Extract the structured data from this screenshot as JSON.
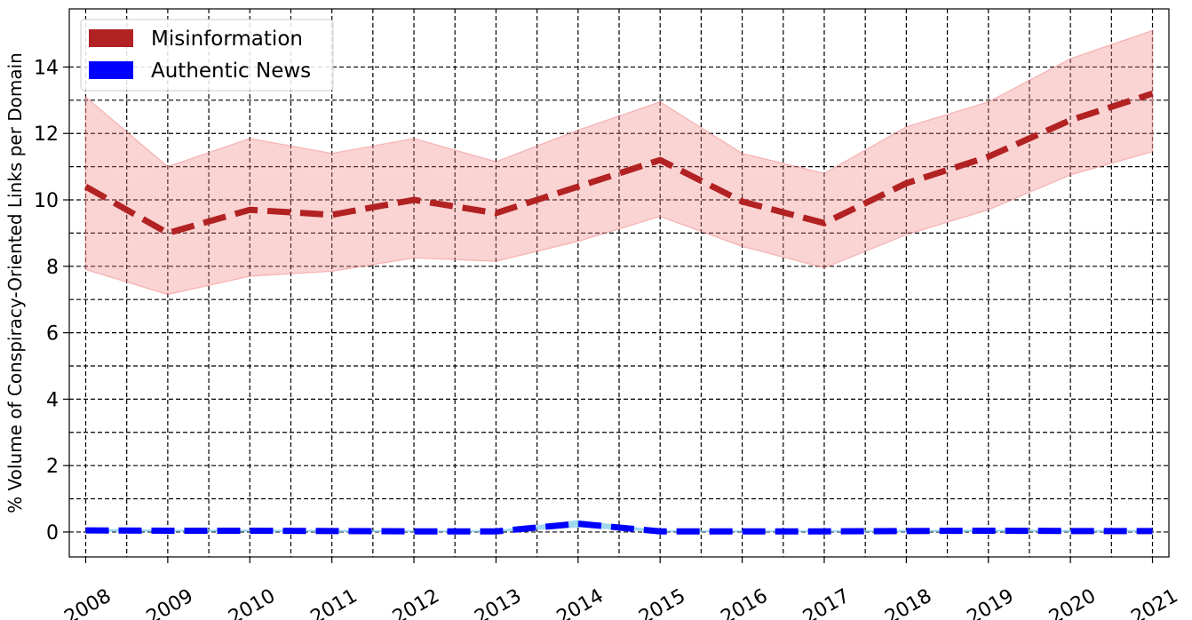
{
  "chart_data": {
    "type": "line",
    "title": "",
    "xlabel": "",
    "ylabel": "% Volume of Conspiracy-Oriented Links per Domain",
    "x": [
      2008,
      2009,
      2010,
      2011,
      2012,
      2013,
      2014,
      2015,
      2016,
      2017,
      2018,
      2019,
      2020,
      2021
    ],
    "x_tick_labels": [
      "2008",
      "2009",
      "2010",
      "2011",
      "2012",
      "2013",
      "2014",
      "2015",
      "2016",
      "2017",
      "2018",
      "2019",
      "2020",
      "2021"
    ],
    "y_ticks": [
      0,
      2,
      4,
      6,
      8,
      10,
      12,
      14
    ],
    "y_tick_labels": [
      "0",
      "2",
      "4",
      "6",
      "8",
      "10",
      "12",
      "14"
    ],
    "ylim": [
      -0.75,
      15.75
    ],
    "xlim": [
      2007.8,
      2021.2
    ],
    "grid": true,
    "grid_style": "dashed",
    "legend_position": "top-left",
    "series": [
      {
        "name": "Misinformation",
        "color": "#b22222",
        "band_color": "#f08080",
        "line_style": "dashed",
        "values": [
          10.4,
          9.0,
          9.7,
          9.55,
          10.0,
          9.6,
          10.4,
          11.2,
          9.95,
          9.3,
          10.5,
          11.3,
          12.4,
          13.2
        ],
        "lower": [
          7.9,
          7.15,
          7.7,
          7.85,
          8.25,
          8.15,
          8.75,
          9.5,
          8.6,
          7.95,
          8.95,
          9.7,
          10.75,
          11.45
        ],
        "upper": [
          13.1,
          11.0,
          11.85,
          11.4,
          11.85,
          11.15,
          12.1,
          12.95,
          11.4,
          10.8,
          12.2,
          12.95,
          14.25,
          15.1
        ]
      },
      {
        "name": "Authentic News",
        "color": "#0000ff",
        "band_color": "#87ceeb",
        "line_style": "dashed",
        "values": [
          0.05,
          0.04,
          0.04,
          0.03,
          0.02,
          0.02,
          0.25,
          0.02,
          0.02,
          0.02,
          0.03,
          0.04,
          0.03,
          0.03
        ],
        "lower": [
          0.02,
          0.02,
          0.02,
          0.01,
          0.01,
          0.01,
          0.15,
          0.01,
          0.01,
          0.01,
          0.01,
          0.02,
          0.01,
          0.01
        ],
        "upper": [
          0.08,
          0.06,
          0.06,
          0.05,
          0.04,
          0.04,
          0.35,
          0.04,
          0.04,
          0.04,
          0.05,
          0.06,
          0.05,
          0.05
        ]
      }
    ]
  }
}
